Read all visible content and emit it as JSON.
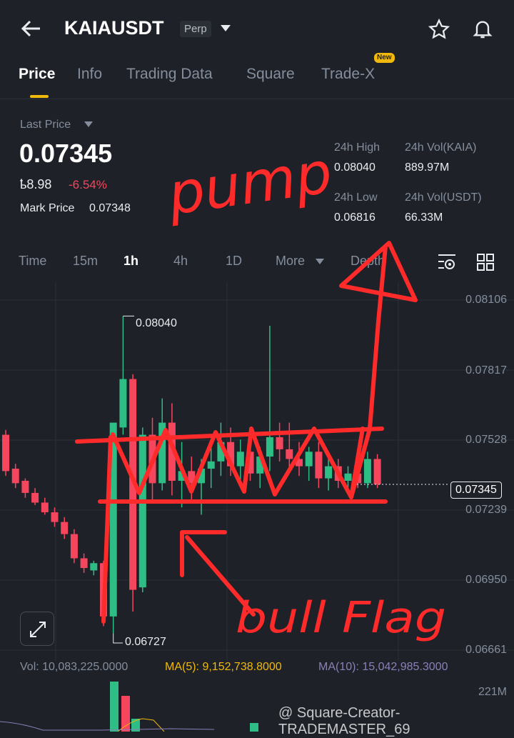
{
  "header": {
    "title": "KAIAUSDT",
    "badge": "Perp",
    "back_icon": "arrow-left-icon",
    "star_icon": "star-icon",
    "bell_icon": "bell-icon"
  },
  "tabs": [
    {
      "label": "Price",
      "active": true
    },
    {
      "label": "Info"
    },
    {
      "label": "Trading Data"
    },
    {
      "label": "Square"
    },
    {
      "label": "Trade-X",
      "badge": "New"
    }
  ],
  "ticker": {
    "last_price_label": "Last Price",
    "last_price": "0.07345",
    "fiat": "ҍ8.98",
    "change": "-6.54%",
    "mark_price_label": "Mark Price",
    "mark_price": "0.07348",
    "high_label": "24h High",
    "high": "0.08040",
    "low_label": "24h Low",
    "low": "0.06816",
    "vol_base_label": "24h Vol(KAIA)",
    "vol_base": "889.97M",
    "vol_quote_label": "24h Vol(USDT)",
    "vol_quote": "66.33M"
  },
  "intervals": [
    {
      "label": "Time"
    },
    {
      "label": "15m"
    },
    {
      "label": "1h",
      "active": true
    },
    {
      "label": "4h"
    },
    {
      "label": "1D"
    },
    {
      "label": "More"
    },
    {
      "label": "Depth"
    }
  ],
  "colors": {
    "up": "#2ebd85",
    "down": "#f6465d",
    "accent": "#f0b90b",
    "ma5": "#f0b90b",
    "ma10": "#8a80b8",
    "annotation": "#ff2a2a"
  },
  "chart_data": {
    "type": "candlestick",
    "y_ticks": [
      "0.08106",
      "0.07817",
      "0.07528",
      "0.07239",
      "0.06950",
      "0.06661"
    ],
    "ylim": [
      0.06661,
      0.08106
    ],
    "high_marker": "0.08040",
    "low_marker": "0.06727",
    "current_price": "0.07345",
    "candles": [
      [
        0.0755,
        0.0757,
        0.0738,
        0.074
      ],
      [
        0.0741,
        0.0743,
        0.0733,
        0.0735
      ],
      [
        0.0736,
        0.0737,
        0.0729,
        0.0731
      ],
      [
        0.0731,
        0.0733,
        0.0726,
        0.0727
      ],
      [
        0.0727,
        0.0729,
        0.0722,
        0.0723
      ],
      [
        0.0723,
        0.0725,
        0.0717,
        0.0719
      ],
      [
        0.0719,
        0.0721,
        0.0712,
        0.0714
      ],
      [
        0.0714,
        0.0716,
        0.0702,
        0.0704
      ],
      [
        0.0704,
        0.0706,
        0.0698,
        0.07
      ],
      [
        0.0699,
        0.0703,
        0.0697,
        0.0702
      ],
      [
        0.0702,
        0.0703,
        0.0676,
        0.068
      ],
      [
        0.068,
        0.076,
        0.0673,
        0.076
      ],
      [
        0.0758,
        0.0804,
        0.0755,
        0.0778
      ],
      [
        0.0778,
        0.078,
        0.0682,
        0.0691
      ],
      [
        0.0692,
        0.0758,
        0.069,
        0.0755
      ],
      [
        0.0755,
        0.0762,
        0.0728,
        0.0735
      ],
      [
        0.0735,
        0.077,
        0.0732,
        0.076
      ],
      [
        0.076,
        0.0768,
        0.073,
        0.0736
      ],
      [
        0.0736,
        0.0752,
        0.0725,
        0.074
      ],
      [
        0.074,
        0.0746,
        0.0728,
        0.0735
      ],
      [
        0.0735,
        0.0745,
        0.0722,
        0.0741
      ],
      [
        0.0741,
        0.075,
        0.0733,
        0.0744
      ],
      [
        0.0744,
        0.076,
        0.0738,
        0.0752
      ],
      [
        0.0752,
        0.0758,
        0.0738,
        0.0742
      ],
      [
        0.0742,
        0.0753,
        0.0736,
        0.0748
      ],
      [
        0.0748,
        0.0752,
        0.0736,
        0.0739
      ],
      [
        0.0739,
        0.075,
        0.0733,
        0.0746
      ],
      [
        0.0746,
        0.08,
        0.074,
        0.0754
      ],
      [
        0.0754,
        0.076,
        0.0744,
        0.0749
      ],
      [
        0.0749,
        0.076,
        0.074,
        0.0745
      ],
      [
        0.0745,
        0.0752,
        0.0738,
        0.0742
      ],
      [
        0.0742,
        0.075,
        0.0736,
        0.0748
      ],
      [
        0.0748,
        0.0752,
        0.0733,
        0.0737
      ],
      [
        0.0737,
        0.0746,
        0.0732,
        0.0742
      ],
      [
        0.0742,
        0.0745,
        0.0733,
        0.0736
      ],
      [
        0.0736,
        0.0742,
        0.0732,
        0.0739
      ],
      [
        0.0739,
        0.0745,
        0.0733,
        0.0735
      ],
      [
        0.0735,
        0.0748,
        0.0733,
        0.0745
      ],
      [
        0.0745,
        0.0747,
        0.0733,
        0.07345
      ]
    ],
    "volume": {
      "label": "Vol: 10,083,225.0000",
      "ma5": "MA(5): 9,152,738.8000",
      "ma10": "MA(10): 15,042,985.3000",
      "axis_max": "221M"
    }
  },
  "annotations": {
    "pump": "pump",
    "bull_flag": "bull Flag"
  },
  "watermark": "@ Square-Creator-TRADEMASTER_69"
}
